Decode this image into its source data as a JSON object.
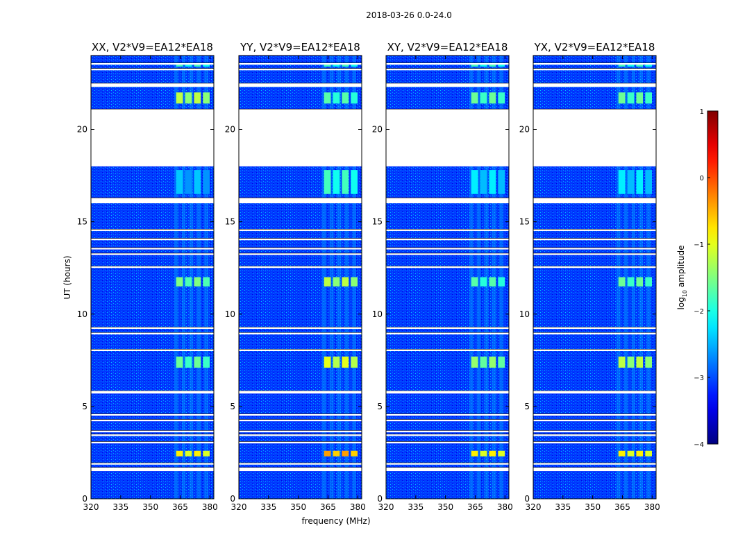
{
  "figure": {
    "suptitle": "2018-03-26 0.0-24.0",
    "xlabel": "frequency (MHz)",
    "ylabel": "UT (hours)",
    "colorbar_label_main": "log",
    "colorbar_label_sub": "10",
    "colorbar_label_tail": " amplitude"
  },
  "chart_data": {
    "type": "heatmap",
    "colormap": "jet",
    "x_range": [
      320,
      382
    ],
    "y_range": [
      0,
      24
    ],
    "x_ticks": [
      320,
      335,
      350,
      365,
      380
    ],
    "x_tick_labels": [
      "320",
      "335",
      "350",
      "365",
      "380"
    ],
    "y_ticks": [
      0,
      5,
      10,
      15,
      20
    ],
    "y_tick_labels": [
      "0",
      "5",
      "10",
      "15",
      "20"
    ],
    "clim": [
      -4,
      1
    ],
    "colorbar_ticks": [
      -4,
      -3,
      -2,
      -1,
      0,
      1
    ],
    "colorbar_tick_labels": [
      "−4",
      "−3",
      "−2",
      "−1",
      "0",
      "1"
    ],
    "background_level": -3.1,
    "rfi_freq_band_mhz": [
      362,
      381
    ],
    "flagged_ut_ranges": [
      [
        1.5,
        1.7
      ],
      [
        1.85,
        1.95
      ],
      [
        3.0,
        3.1
      ],
      [
        3.4,
        3.5
      ],
      [
        3.6,
        3.7
      ],
      [
        4.2,
        4.3
      ],
      [
        4.5,
        4.6
      ],
      [
        5.7,
        5.85
      ],
      [
        8.0,
        8.1
      ],
      [
        8.9,
        9.0
      ],
      [
        9.2,
        9.3
      ],
      [
        12.5,
        12.6
      ],
      [
        13.2,
        13.3
      ],
      [
        13.5,
        13.6
      ],
      [
        14.0,
        14.1
      ],
      [
        14.5,
        14.6
      ],
      [
        16.0,
        16.3
      ],
      [
        18.0,
        21.1
      ],
      [
        22.3,
        22.5
      ],
      [
        23.2,
        23.3
      ],
      [
        23.5,
        23.6
      ]
    ],
    "panels": [
      {
        "title": "XX, V2*V9=EA12*EA18",
        "events": [
          {
            "ut": [
              2.3,
              2.6
            ],
            "level": -0.8
          },
          {
            "ut": [
              7.1,
              7.7
            ],
            "level": -1.6
          },
          {
            "ut": [
              11.5,
              12.0
            ],
            "level": -1.5
          },
          {
            "ut": [
              21.4,
              22.0
            ],
            "level": -1.2
          },
          {
            "ut": [
              16.5,
              17.8
            ],
            "level": -2.4
          },
          {
            "ut": [
              23.4,
              23.5
            ],
            "level": -1.8
          }
        ]
      },
      {
        "title": "YY, V2*V9=EA12*EA18",
        "events": [
          {
            "ut": [
              2.3,
              2.6
            ],
            "level": -0.4
          },
          {
            "ut": [
              7.1,
              7.7
            ],
            "level": -1.0
          },
          {
            "ut": [
              11.5,
              12.0
            ],
            "level": -1.2
          },
          {
            "ut": [
              21.4,
              22.0
            ],
            "level": -1.7
          },
          {
            "ut": [
              16.5,
              17.8
            ],
            "level": -1.8
          },
          {
            "ut": [
              23.4,
              23.5
            ],
            "level": -1.8
          }
        ]
      },
      {
        "title": "XY, V2*V9=EA12*EA18",
        "events": [
          {
            "ut": [
              2.3,
              2.6
            ],
            "level": -0.8
          },
          {
            "ut": [
              7.1,
              7.7
            ],
            "level": -1.4
          },
          {
            "ut": [
              11.5,
              12.0
            ],
            "level": -1.7
          },
          {
            "ut": [
              21.4,
              22.0
            ],
            "level": -1.6
          },
          {
            "ut": [
              16.5,
              17.8
            ],
            "level": -2.2
          },
          {
            "ut": [
              23.4,
              23.5
            ],
            "level": -1.8
          }
        ]
      },
      {
        "title": "YX, V2*V9=EA12*EA18",
        "events": [
          {
            "ut": [
              2.3,
              2.6
            ],
            "level": -0.8
          },
          {
            "ut": [
              7.1,
              7.7
            ],
            "level": -1.2
          },
          {
            "ut": [
              11.5,
              12.0
            ],
            "level": -1.6
          },
          {
            "ut": [
              21.4,
              22.0
            ],
            "level": -1.6
          },
          {
            "ut": [
              16.5,
              17.8
            ],
            "level": -2.2
          },
          {
            "ut": [
              23.4,
              23.5
            ],
            "level": -1.8
          }
        ]
      }
    ]
  }
}
